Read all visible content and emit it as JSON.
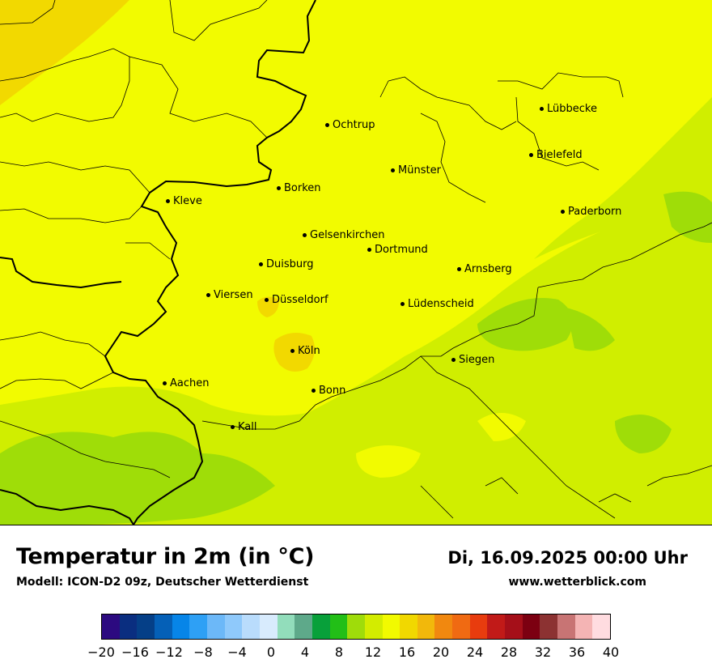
{
  "title": "Temperatur in 2m (in °C)",
  "model": "Modell: ICON-D2 09z, Deutscher Wetterdienst",
  "datetime": "Di, 16.09.2025 00:00 Uhr",
  "website": "www.wetterblick.com",
  "cities": [
    {
      "name": "Lübbecke"
    },
    {
      "name": "Ochtrup"
    },
    {
      "name": "Bielefeld"
    },
    {
      "name": "Münster"
    },
    {
      "name": "Borken"
    },
    {
      "name": "Kleve"
    },
    {
      "name": "Paderborn"
    },
    {
      "name": "Gelsenkirchen"
    },
    {
      "name": "Dortmund"
    },
    {
      "name": "Duisburg"
    },
    {
      "name": "Arnsberg"
    },
    {
      "name": "Viersen"
    },
    {
      "name": "Düsseldorf"
    },
    {
      "name": "Lüdenscheid"
    },
    {
      "name": "Köln"
    },
    {
      "name": "Siegen"
    },
    {
      "name": "Aachen"
    },
    {
      "name": "Bonn"
    },
    {
      "name": "Kall"
    }
  ],
  "legend": {
    "ticks": [
      "−20",
      "−16",
      "−12",
      "−8",
      "−4",
      "0",
      "4",
      "8",
      "12",
      "16",
      "20",
      "24",
      "28",
      "32",
      "36",
      "40"
    ],
    "colors": [
      "#2c0a80",
      "#0a2e80",
      "#053f87",
      "#0560b7",
      "#0785e8",
      "#2ea0f5",
      "#6cb8f8",
      "#8fc9fb",
      "#b9dcfc",
      "#d8ebfd",
      "#92ddbb",
      "#5ea98a",
      "#08a03a",
      "#22bf17",
      "#9fdc0a",
      "#d3ec00",
      "#f2fa00",
      "#f1d800",
      "#f2b80b",
      "#f1880f",
      "#f06a12",
      "#e83c0e",
      "#c11a18",
      "#a50f19",
      "#7c0011",
      "#8c3232",
      "#c87474",
      "#f4b4b4",
      "#ffdce0"
    ]
  },
  "field_colors": {
    "yellow": "#f2fb00",
    "lime": "#d0ee00",
    "green": "#9fdd08",
    "amber": "#f2d900",
    "gold": "#f2c600"
  }
}
